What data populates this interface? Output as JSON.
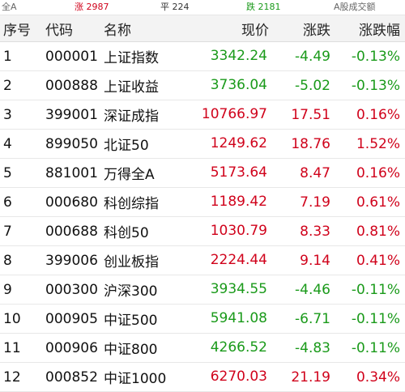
{
  "stats": {
    "all": "全A",
    "up_label": "涨",
    "up_count": "2987",
    "flat_label": "平",
    "flat_count": "224",
    "down_label": "跌",
    "down_count": "2181",
    "volume_label": "A股成交额"
  },
  "headers": [
    "序号",
    "代码",
    "名称",
    "现价",
    "涨跌",
    "涨跌幅"
  ],
  "rows": [
    {
      "seq": "1",
      "code": "000001",
      "name": "上证指数",
      "price": "3342.24",
      "chg": "-4.49",
      "pct": "-0.13%",
      "trend": "down",
      "box": "red"
    },
    {
      "seq": "2",
      "code": "000888",
      "name": "上证收益",
      "price": "3736.04",
      "chg": "-5.02",
      "pct": "-0.13%",
      "trend": "down",
      "box": "red"
    },
    {
      "seq": "3",
      "code": "399001",
      "name": "深证成指",
      "price": "10766.97",
      "chg": "17.51",
      "pct": "0.16%",
      "trend": "up",
      "box": "none"
    },
    {
      "seq": "4",
      "code": "899050",
      "name": "北证50",
      "price": "1249.62",
      "chg": "18.76",
      "pct": "1.52%",
      "trend": "up",
      "box": "green"
    },
    {
      "seq": "5",
      "code": "881001",
      "name": "万得全A",
      "price": "5173.64",
      "chg": "8.47",
      "pct": "0.16%",
      "trend": "up",
      "box": "none"
    },
    {
      "seq": "6",
      "code": "000680",
      "name": "科创综指",
      "price": "1189.42",
      "chg": "7.19",
      "pct": "0.61%",
      "trend": "up",
      "box": "green"
    },
    {
      "seq": "7",
      "code": "000688",
      "name": "科创50",
      "price": "1030.79",
      "chg": "8.33",
      "pct": "0.81%",
      "trend": "up",
      "box": "green"
    },
    {
      "seq": "8",
      "code": "399006",
      "name": "创业板指",
      "price": "2224.44",
      "chg": "9.14",
      "pct": "0.41%",
      "trend": "up",
      "box": "none"
    },
    {
      "seq": "9",
      "code": "000300",
      "name": "沪深300",
      "price": "3934.55",
      "chg": "-4.46",
      "pct": "-0.11%",
      "trend": "down",
      "box": "green"
    },
    {
      "seq": "10",
      "code": "000905",
      "name": "中证500",
      "price": "5941.08",
      "chg": "-6.71",
      "pct": "-0.11%",
      "trend": "down",
      "box": "green"
    },
    {
      "seq": "11",
      "code": "000906",
      "name": "中证800",
      "price": "4266.52",
      "chg": "-4.83",
      "pct": "-0.11%",
      "trend": "down",
      "box": "green"
    },
    {
      "seq": "12",
      "code": "000852",
      "name": "中证1000",
      "price": "6270.03",
      "chg": "21.19",
      "pct": "0.34%",
      "trend": "up",
      "box": "green"
    }
  ],
  "colors": {
    "up": "#d0021b",
    "down": "#1a9a1a",
    "box_red": "#e25b66",
    "box_green": "#44a85a"
  }
}
